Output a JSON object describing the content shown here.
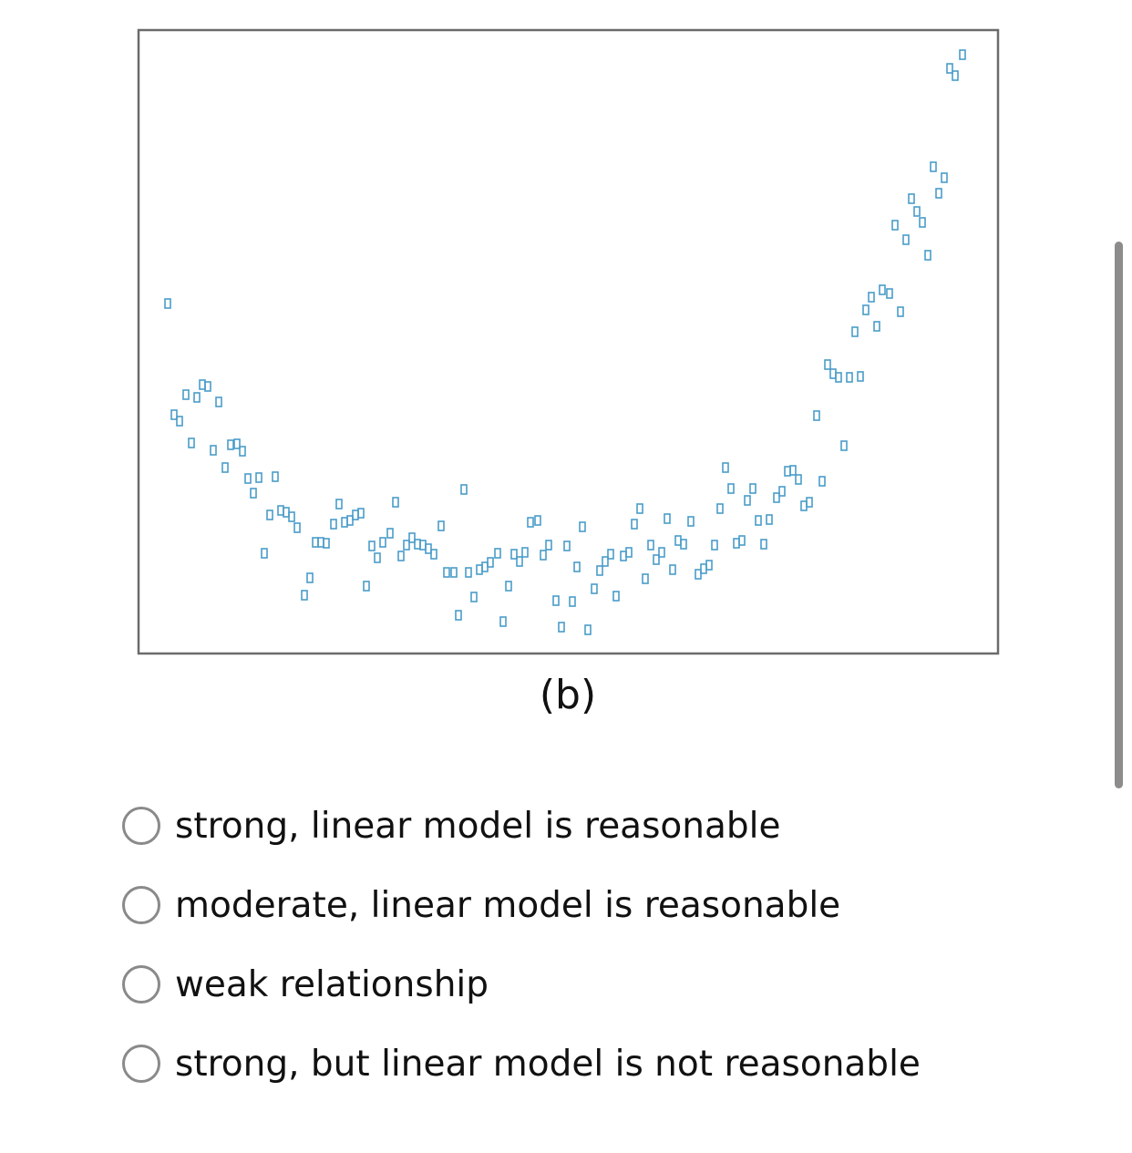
{
  "chart_data": {
    "type": "scatter",
    "caption": "(b)",
    "color": "#4a9cc9",
    "xlim": [
      0,
      943
    ],
    "ylim": [
      0,
      684
    ],
    "x": [
      32,
      39,
      45,
      52,
      58,
      64,
      70,
      76,
      82,
      88,
      95,
      101,
      108,
      114,
      120,
      126,
      132,
      138,
      150,
      144,
      156,
      162,
      168,
      174,
      182,
      188,
      194,
      200,
      206,
      214,
      220,
      226,
      232,
      238,
      244,
      250,
      256,
      262,
      268,
      276,
      282,
      288,
      294,
      300,
      306,
      312,
      318,
      324,
      332,
      338,
      346,
      351,
      357,
      362,
      368,
      374,
      380,
      386,
      394,
      400,
      406,
      412,
      418,
      424,
      430,
      438,
      444,
      450,
      458,
      464,
      470,
      476,
      481,
      487,
      493,
      500,
      506,
      512,
      518,
      524,
      532,
      538,
      544,
      550,
      556,
      562,
      568,
      574,
      580,
      586,
      592,
      598,
      606,
      614,
      620,
      626,
      632,
      638,
      644,
      650,
      656,
      662,
      668,
      674,
      680,
      686,
      692,
      700,
      706,
      712,
      718,
      724,
      730,
      736,
      744,
      750,
      756,
      762,
      768,
      774,
      780,
      786,
      792,
      798,
      804,
      810,
      816,
      824,
      836,
      830,
      842,
      848,
      854,
      860,
      866,
      872,
      878,
      884,
      890,
      896,
      904
    ],
    "values": [
      384,
      262,
      255,
      284,
      231,
      281,
      295,
      293,
      223,
      276,
      204,
      229,
      230,
      222,
      192,
      176,
      193,
      110,
      194,
      152,
      157,
      155,
      150,
      138,
      64,
      83,
      122,
      122,
      121,
      142,
      164,
      144,
      146,
      152,
      154,
      74,
      118,
      105,
      122,
      132,
      166,
      107,
      119,
      127,
      120,
      119,
      115,
      109,
      140,
      89,
      89,
      42,
      180,
      89,
      62,
      92,
      95,
      100,
      110,
      35,
      74,
      109,
      101,
      111,
      144,
      146,
      108,
      119,
      58,
      29,
      118,
      57,
      95,
      139,
      26,
      71,
      91,
      101,
      109,
      63,
      107,
      111,
      142,
      159,
      82,
      119,
      103,
      111,
      148,
      92,
      124,
      120,
      145,
      87,
      93,
      97,
      119,
      159,
      204,
      181,
      121,
      124,
      168,
      181,
      146,
      120,
      147,
      171,
      178,
      200,
      201,
      191,
      162,
      166,
      261,
      189,
      317,
      307,
      303,
      228,
      303,
      353,
      304,
      377,
      391,
      359,
      399,
      395,
      375,
      470,
      454,
      499,
      485,
      473,
      437,
      534,
      505,
      522,
      642,
      634,
      657
    ]
  },
  "options": [
    "strong, linear model is reasonable",
    "moderate, linear model is reasonable",
    "weak relationship",
    "strong, but linear model is not reasonable"
  ]
}
